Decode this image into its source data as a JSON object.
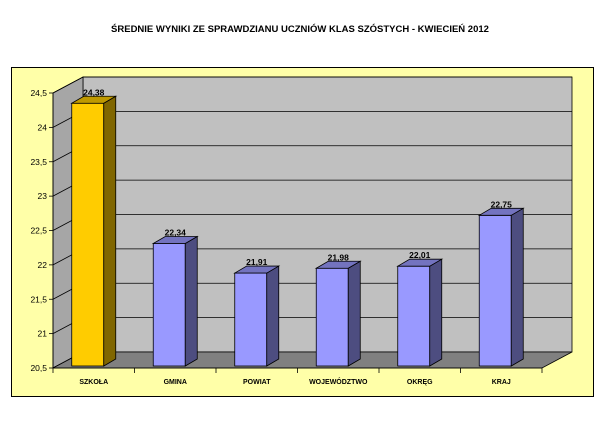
{
  "chart_data": {
    "type": "bar",
    "title": "ŚREDNIE WYNIKI ZE SPRAWDZIANU UCZNIÓW KLAS SZÓSTYCH - KWIECIEŃ 2012",
    "categories": [
      "SZKOŁA",
      "GMINA",
      "POWIAT",
      "WOJEWÓDZTWO",
      "OKRĘG",
      "KRAJ"
    ],
    "values": [
      24.38,
      22.34,
      21.91,
      21.98,
      22.01,
      22.75
    ],
    "data_labels": [
      "24,38",
      "22,34",
      "21,91",
      "21,98",
      "22,01",
      "22,75"
    ],
    "ylim": [
      20.5,
      24.5
    ],
    "yticks": [
      20.5,
      21,
      21.5,
      22,
      22.5,
      23,
      23.5,
      24,
      24.5
    ],
    "ytick_labels": [
      "20,5",
      "21",
      "21,5",
      "22",
      "22,5",
      "23",
      "23,5",
      "24",
      "24,5"
    ],
    "bar_colors": [
      "#ffcc00",
      "#9999ff",
      "#9999ff",
      "#9999ff",
      "#9999ff",
      "#9999ff"
    ],
    "grid": true,
    "legend": "none",
    "style": "3d-column"
  },
  "colors": {
    "frame_background": "#ffffa8",
    "plot_background": "#c0c0c0",
    "floor": "#808080",
    "highlight_bar": "#ffcc00",
    "bar": "#9999ff"
  }
}
